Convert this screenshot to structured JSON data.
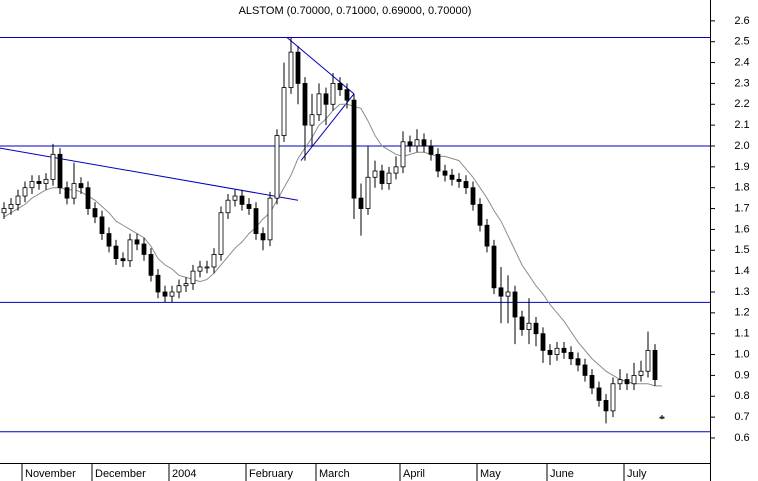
{
  "chart_data": {
    "type": "candlestick",
    "title": "ALSTOM (0.70000, 0.71000, 0.69000, 0.70000)",
    "categories": [
      null,
      null,
      null,
      "November",
      null,
      null,
      null,
      null,
      null,
      null,
      null,
      null,
      null,
      "December",
      null,
      null,
      null,
      null,
      null,
      null,
      null,
      null,
      null,
      null,
      "2004",
      null,
      null,
      null,
      null,
      null,
      null,
      null,
      null,
      null,
      null,
      "February",
      null,
      null,
      null,
      null,
      null,
      null,
      null,
      null,
      null,
      "March",
      null,
      null,
      null,
      null,
      null,
      null,
      null,
      null,
      null,
      null,
      null,
      "April",
      null,
      null,
      null,
      null,
      null,
      null,
      null,
      null,
      null,
      null,
      "May",
      null,
      null,
      null,
      null,
      null,
      null,
      null,
      null,
      null,
      "June",
      null,
      null,
      null,
      null,
      null,
      null,
      null,
      null,
      null,
      null,
      "July",
      null,
      null,
      null,
      null,
      null
    ],
    "open": [
      1.68,
      1.7,
      1.72,
      1.76,
      1.8,
      1.83,
      1.82,
      1.84,
      1.96,
      1.8,
      1.75,
      1.82,
      1.8,
      1.7,
      1.66,
      1.58,
      1.52,
      1.46,
      1.45,
      1.55,
      1.53,
      1.48,
      1.38,
      1.3,
      1.28,
      1.3,
      1.33,
      1.34,
      1.4,
      1.42,
      1.42,
      1.48,
      1.68,
      1.74,
      1.76,
      1.72,
      1.7,
      1.58,
      1.55,
      1.75,
      2.05,
      2.28,
      2.45,
      2.3,
      2.1,
      2.15,
      2.25,
      2.2,
      2.3,
      2.27,
      2.22,
      1.75,
      1.7,
      1.85,
      1.88,
      1.82,
      1.87,
      1.9,
      2.02,
      2.0,
      2.03,
      2.0,
      1.96,
      1.88,
      1.86,
      1.84,
      1.83,
      1.8,
      1.72,
      1.62,
      1.52,
      1.32,
      1.28,
      1.3,
      1.18,
      1.12,
      1.15,
      1.1,
      1.02,
      1.0,
      1.03,
      1.01,
      0.98,
      0.95,
      0.9,
      0.84,
      0.78,
      0.73,
      0.86,
      0.88,
      0.86,
      0.9,
      0.92,
      1.02,
      0.7
    ],
    "high": [
      1.73,
      1.75,
      1.79,
      1.83,
      1.86,
      1.86,
      1.87,
      2.01,
      1.99,
      1.83,
      1.92,
      1.85,
      1.83,
      1.73,
      1.69,
      1.61,
      1.55,
      1.49,
      1.58,
      1.58,
      1.56,
      1.51,
      1.41,
      1.33,
      1.33,
      1.36,
      1.37,
      1.43,
      1.45,
      1.45,
      1.51,
      1.71,
      1.77,
      1.79,
      1.79,
      1.75,
      1.73,
      1.61,
      1.78,
      2.08,
      2.4,
      2.52,
      2.48,
      2.33,
      2.25,
      2.3,
      2.28,
      2.35,
      2.33,
      2.3,
      2.25,
      1.82,
      2.0,
      1.93,
      1.91,
      1.9,
      1.95,
      2.07,
      2.05,
      2.08,
      2.06,
      2.03,
      1.99,
      1.91,
      1.89,
      1.87,
      1.86,
      1.83,
      1.75,
      1.65,
      1.55,
      1.42,
      1.38,
      1.33,
      1.21,
      1.27,
      1.18,
      1.13,
      1.05,
      1.06,
      1.06,
      1.04,
      1.01,
      0.98,
      0.93,
      0.87,
      0.81,
      0.89,
      0.93,
      0.91,
      0.96,
      0.97,
      1.11,
      1.05,
      0.71
    ],
    "low": [
      1.65,
      1.67,
      1.69,
      1.73,
      1.77,
      1.79,
      1.79,
      1.81,
      1.77,
      1.72,
      1.72,
      1.77,
      1.67,
      1.63,
      1.55,
      1.49,
      1.43,
      1.42,
      1.42,
      1.5,
      1.45,
      1.35,
      1.27,
      1.25,
      1.25,
      1.27,
      1.3,
      1.31,
      1.37,
      1.39,
      1.39,
      1.45,
      1.65,
      1.71,
      1.69,
      1.67,
      1.55,
      1.5,
      1.52,
      1.72,
      2.02,
      2.25,
      2.2,
      1.93,
      2.0,
      2.12,
      2.1,
      2.17,
      2.24,
      2.18,
      1.65,
      1.57,
      1.67,
      1.8,
      1.79,
      1.79,
      1.84,
      1.87,
      1.97,
      1.97,
      1.97,
      1.93,
      1.85,
      1.83,
      1.81,
      1.8,
      1.77,
      1.69,
      1.59,
      1.49,
      1.29,
      1.15,
      1.15,
      1.05,
      1.09,
      1.05,
      1.04,
      0.96,
      0.95,
      0.97,
      0.98,
      0.95,
      0.92,
      0.87,
      0.81,
      0.75,
      0.67,
      0.7,
      0.83,
      0.83,
      0.83,
      0.87,
      0.89,
      0.85,
      0.69
    ],
    "close": [
      1.7,
      1.72,
      1.76,
      1.8,
      1.83,
      1.82,
      1.84,
      1.96,
      1.8,
      1.75,
      1.82,
      1.8,
      1.7,
      1.66,
      1.58,
      1.52,
      1.46,
      1.45,
      1.55,
      1.53,
      1.48,
      1.38,
      1.3,
      1.28,
      1.3,
      1.33,
      1.34,
      1.4,
      1.42,
      1.42,
      1.48,
      1.68,
      1.74,
      1.76,
      1.72,
      1.7,
      1.58,
      1.55,
      1.75,
      2.05,
      2.28,
      2.45,
      2.3,
      2.1,
      2.15,
      2.25,
      2.2,
      2.3,
      2.27,
      2.22,
      1.75,
      1.7,
      1.85,
      1.88,
      1.82,
      1.87,
      1.9,
      2.02,
      2.0,
      2.03,
      2.0,
      1.96,
      1.88,
      1.86,
      1.84,
      1.83,
      1.8,
      1.72,
      1.62,
      1.52,
      1.32,
      1.28,
      1.3,
      1.18,
      1.12,
      1.15,
      1.1,
      1.02,
      1.0,
      1.03,
      1.01,
      0.98,
      0.95,
      0.9,
      0.84,
      0.78,
      0.73,
      0.86,
      0.88,
      0.86,
      0.9,
      0.92,
      1.02,
      0.88,
      0.7
    ],
    "up_color": "#ffffff",
    "down_color": "#000000",
    "moving_average": {
      "color": "#8c8c8c",
      "values": [
        1.66,
        1.68,
        1.7,
        1.72,
        1.75,
        1.77,
        1.79,
        1.8,
        1.8,
        1.79,
        1.79,
        1.78,
        1.76,
        1.74,
        1.71,
        1.68,
        1.64,
        1.62,
        1.6,
        1.58,
        1.56,
        1.52,
        1.46,
        1.43,
        1.41,
        1.38,
        1.37,
        1.36,
        1.35,
        1.36,
        1.39,
        1.43,
        1.47,
        1.51,
        1.54,
        1.58,
        1.61,
        1.65,
        1.68,
        1.74,
        1.8,
        1.86,
        1.94,
        1.99,
        2.04,
        2.1,
        2.13,
        2.17,
        2.2,
        2.2,
        2.19,
        2.18,
        2.12,
        2.05,
        2.0,
        1.98,
        1.96,
        1.95,
        1.96,
        1.97,
        1.97,
        1.96,
        1.95,
        1.95,
        1.94,
        1.93,
        1.89,
        1.85,
        1.8,
        1.75,
        1.69,
        1.64,
        1.57,
        1.5,
        1.43,
        1.38,
        1.33,
        1.29,
        1.24,
        1.2,
        1.16,
        1.11,
        1.06,
        1.02,
        0.98,
        0.95,
        0.92,
        0.9,
        0.88,
        0.87,
        0.86,
        0.86,
        0.86,
        0.85,
        0.85
      ]
    },
    "trendlines": {
      "color": "#0000c0",
      "levels": [
        2.52,
        2.0,
        1.25,
        0.63
      ],
      "segments": [
        {
          "x": [
            0,
            42
          ],
          "y": [
            1.99,
            1.74
          ]
        },
        {
          "x": [
            41,
            50
          ],
          "y": [
            2.52,
            2.25
          ]
        },
        {
          "x": [
            43,
            50
          ],
          "y": [
            1.93,
            2.25
          ]
        }
      ]
    },
    "ylim": [
      0.48,
      2.7
    ],
    "yticks": [
      0.6,
      0.7,
      0.8,
      0.9,
      {
        "value": 1,
        "label": "1.0"
      },
      1.1,
      1.2,
      1.3,
      1.4,
      1.5,
      1.6,
      1.7,
      1.8,
      1.9,
      {
        "value": 2,
        "label": "2.0"
      },
      2.1,
      2.2,
      2.3,
      2.4,
      2.5,
      2.6
    ]
  }
}
